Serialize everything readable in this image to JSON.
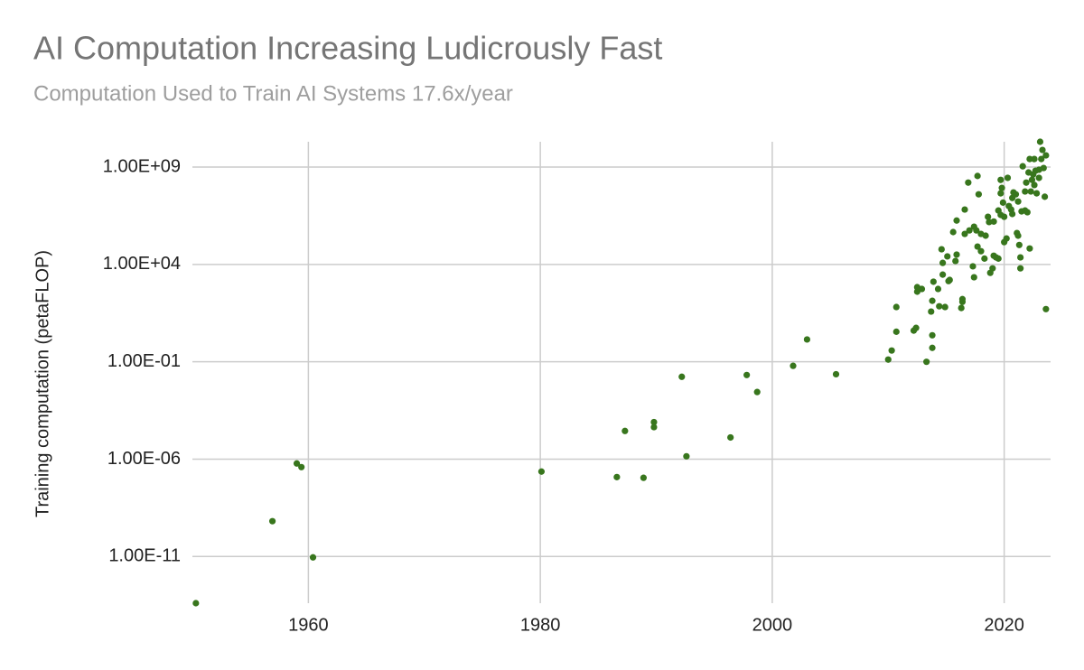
{
  "chart_data": {
    "type": "scatter",
    "title": "AI Computation Increasing Ludicrously Fast",
    "subtitle": "Computation Used to Train AI Systems 17.6x/year",
    "y_label": "Training computation (petaFLOP)",
    "color": "#38761d",
    "log_y": true,
    "grid": true,
    "xlim": [
      1950,
      2024
    ],
    "xticks": [
      1960,
      1980,
      2000,
      2020
    ],
    "ylim": [
      4e-14,
      20000000000.0
    ],
    "yticks": [
      {
        "value": 1e-11,
        "label": "1.00E-11"
      },
      {
        "value": 1e-06,
        "label": "1.00E-06"
      },
      {
        "value": 0.1,
        "label": "1.00E-01"
      },
      {
        "value": 10000,
        "label": "1.00E+04"
      },
      {
        "value": 1000000000,
        "label": "1.00E+09"
      }
    ],
    "x": [
      1950.3,
      1956.9,
      1959.0,
      1959.4,
      1960.4,
      1980.1,
      1986.6,
      1987.3,
      1988.9,
      1989.8,
      1989.8,
      1992.2,
      1992.6,
      1996.4,
      1997.8,
      1998.7,
      2001.8,
      2003.0,
      2005.5,
      2010.0,
      2010.3,
      2010.7,
      2010.7,
      2013.3,
      2013.8,
      2013.8,
      2012.2,
      2012.4,
      2012.5,
      2012.5,
      2012.9,
      2013.7,
      2013.8,
      2013.9,
      2014.3,
      2014.4,
      2014.7,
      2014.7,
      2014.9,
      2015.1,
      2015.2,
      2014.6,
      2015.3,
      2015.8,
      2015.9,
      2015.6,
      2015.9,
      2016.3,
      2016.4,
      2016.4,
      2016.6,
      2016.6,
      2016.9,
      2017.0,
      2017.3,
      2017.4,
      2017.4,
      2017.6,
      2017.7,
      2017.8,
      2017.7,
      2018.0,
      2018.0,
      2018.3,
      2018.4,
      2018.6,
      2018.7,
      2018.8,
      2019.0,
      2019.1,
      2019.1,
      2019.3,
      2019.5,
      2019.7,
      2019.5,
      2019.7,
      2019.7,
      2019.8,
      2019.9,
      2020.0,
      2020.0,
      2020.2,
      2020.3,
      2020.4,
      2020.6,
      2020.7,
      2020.7,
      2020.8,
      2021.0,
      2021.2,
      2021.2,
      2021.3,
      2021.4,
      2021.4,
      2021.5,
      2021.6,
      2021.8,
      2021.8,
      2021.9,
      2022.0,
      2022.1,
      2022.2,
      2022.2,
      2022.3,
      2022.4,
      2022.5,
      2022.6,
      2022.6,
      2022.7,
      2022.8,
      2023.0,
      2023.0,
      2023.1,
      2023.2,
      2023.3,
      2023.4,
      2023.5,
      2023.6,
      2023.6,
      2021.1
    ],
    "values": [
      4e-14,
      6.5e-10,
      6e-07,
      3.9e-07,
      9e-12,
      2.3e-07,
      1.2e-07,
      2.8e-05,
      1.1e-07,
      8e-05,
      4.4e-05,
      0.017,
      1.4e-06,
      1.3e-05,
      0.021,
      0.0028,
      0.062,
      1.4,
      0.023,
      0.13,
      0.38,
      3.5,
      65,
      0.1,
      2.3,
      0.52,
      4,
      5.5,
      400,
      680,
      550,
      38,
      136,
      1300,
      550,
      71,
      3000,
      12000,
      65,
      26000,
      1400,
      60000,
      1600,
      15000,
      32000,
      460000,
      1800000,
      58,
      120,
      166,
      370000,
      6600000,
      160000000,
      560000,
      8000,
      870000,
      2200,
      560000,
      350000000,
      40000000,
      83000,
      370000,
      48000,
      20000,
      300000,
      2800000,
      1500000,
      3700,
      6300,
      1600000,
      28000,
      23000,
      5900000,
      3500000,
      20000,
      220000000,
      45000000,
      85000000,
      15000000,
      2800000,
      140000,
      215000,
      280000000,
      10000000,
      6600000,
      3900000,
      26000000,
      50000000,
      40000000,
      17000000,
      300000,
      100000,
      23000,
      6300,
      5300000,
      1100000000,
      56000000,
      5900000,
      160000000,
      4800000,
      530000000,
      66000,
      2600000000,
      56000000,
      220000000,
      420000000,
      120000000,
      2600000000,
      650000000,
      45000000,
      280000000,
      730000000,
      20000000000,
      2600000000,
      7600000000,
      900000000,
      30000000,
      51,
      4000000000,
      410000
    ]
  }
}
